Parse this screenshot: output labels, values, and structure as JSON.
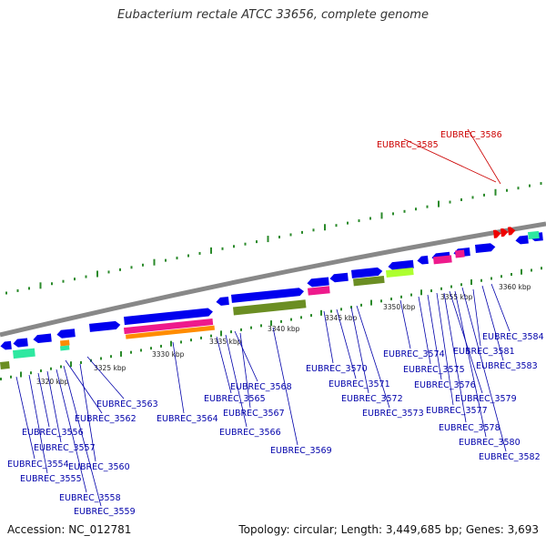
{
  "title": "Eubacterium rectale ATCC 33656, complete genome",
  "footer": {
    "accession": "Accession: NC_012781",
    "stats": "Topology: circular; Length: 3,449,685 bp; Genes: 3,693"
  },
  "colors": {
    "forward_gene": "#0000ee",
    "reverse_gene": "#0000ee",
    "highlight_gene": "#ee0000",
    "pink": "#ee1a8c",
    "orange": "#ff8c00",
    "olive": "#6b8e23",
    "lime": "#adff2f",
    "teal": "#2ee8a0",
    "tick": "#2a8a2a",
    "backbone": "#888888",
    "label_blue": "#0000aa",
    "label_red": "#cc0000"
  },
  "scale_labels": [
    "3320 kbp",
    "3325 kbp",
    "3330 kbp",
    "3335 kbp",
    "3340 kbp",
    "3345 kbp",
    "3350 kbp",
    "3355 kbp",
    "3360 kbp"
  ],
  "gene_labels": [
    {
      "text": "EUBREC_3586",
      "color": "red"
    },
    {
      "text": "EUBREC_3585",
      "color": "red"
    },
    {
      "text": "EUBREC_3584",
      "color": "blue"
    },
    {
      "text": "EUBREC_3583",
      "color": "blue"
    },
    {
      "text": "EUBREC_3582",
      "color": "blue"
    },
    {
      "text": "EUBREC_3581",
      "color": "blue"
    },
    {
      "text": "EUBREC_3580",
      "color": "blue"
    },
    {
      "text": "EUBREC_3579",
      "color": "blue"
    },
    {
      "text": "EUBREC_3578",
      "color": "blue"
    },
    {
      "text": "EUBREC_3577",
      "color": "blue"
    },
    {
      "text": "EUBREC_3576",
      "color": "blue"
    },
    {
      "text": "EUBREC_3575",
      "color": "blue"
    },
    {
      "text": "EUBREC_3574",
      "color": "blue"
    },
    {
      "text": "EUBREC_3573",
      "color": "blue"
    },
    {
      "text": "EUBREC_3572",
      "color": "blue"
    },
    {
      "text": "EUBREC_3571",
      "color": "blue"
    },
    {
      "text": "EUBREC_3570",
      "color": "blue"
    },
    {
      "text": "EUBREC_3569",
      "color": "blue"
    },
    {
      "text": "EUBREC_3568",
      "color": "blue"
    },
    {
      "text": "EUBREC_3567",
      "color": "blue"
    },
    {
      "text": "EUBREC_3566",
      "color": "blue"
    },
    {
      "text": "EUBREC_3565",
      "color": "blue"
    },
    {
      "text": "EUBREC_3564",
      "color": "blue"
    },
    {
      "text": "EUBREC_3563",
      "color": "blue"
    },
    {
      "text": "EUBREC_3562",
      "color": "blue"
    },
    {
      "text": "EUBREC_3560",
      "color": "blue"
    },
    {
      "text": "EUBREC_3559",
      "color": "blue"
    },
    {
      "text": "EUBREC_3558",
      "color": "blue"
    },
    {
      "text": "EUBREC_3557",
      "color": "blue"
    },
    {
      "text": "EUBREC_3556",
      "color": "blue"
    },
    {
      "text": "EUBREC_3555",
      "color": "blue"
    },
    {
      "text": "EUBREC_3554",
      "color": "blue"
    }
  ]
}
